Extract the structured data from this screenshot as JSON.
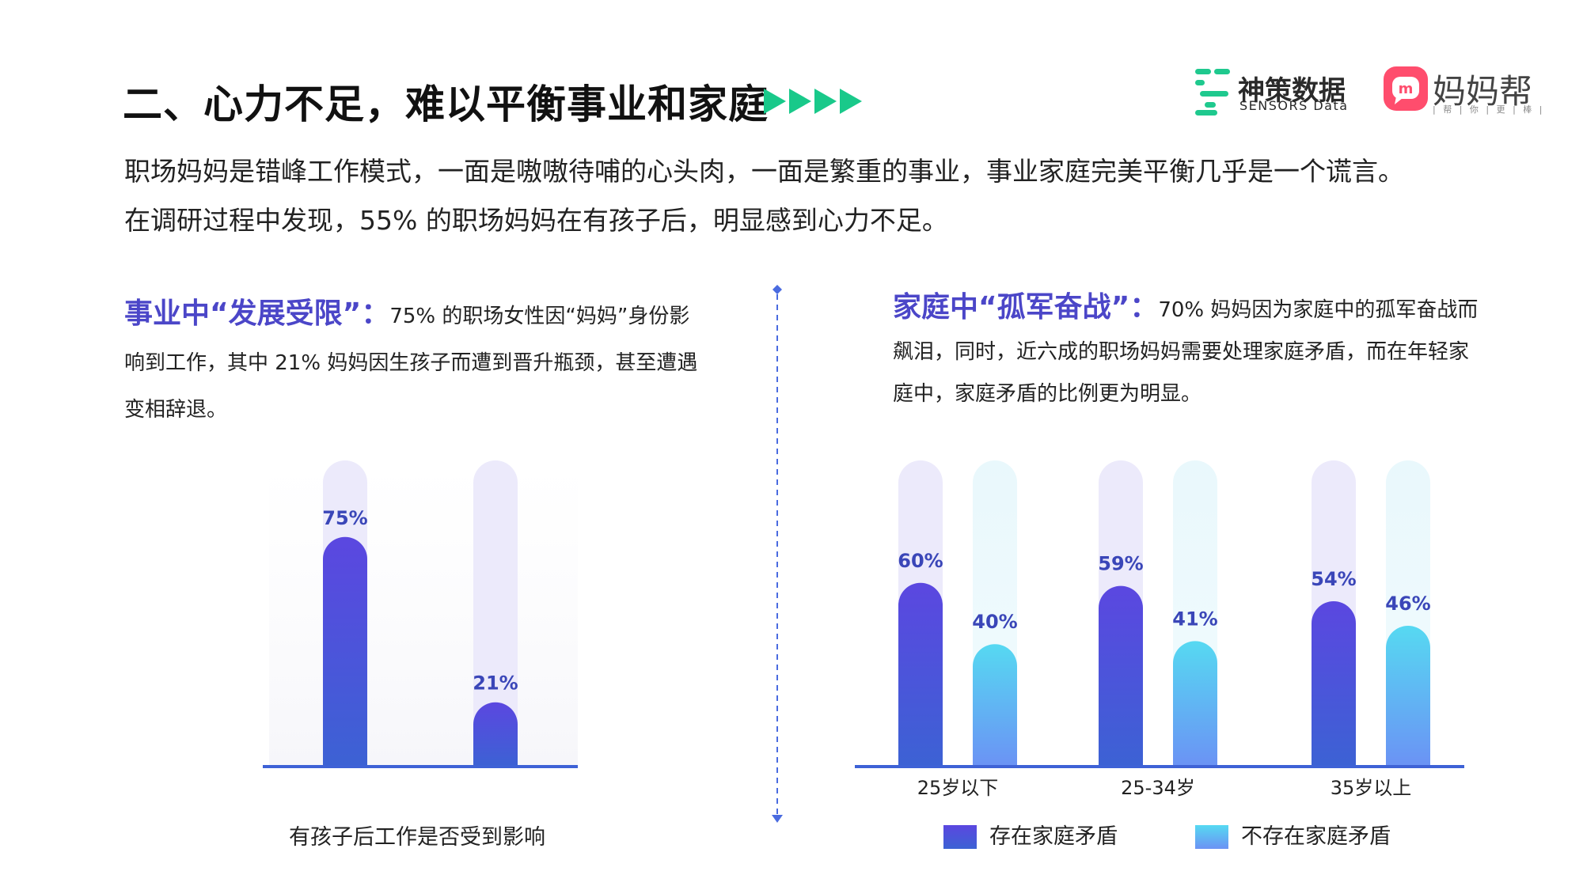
{
  "header": {
    "title": "二、心力不足，难以平衡事业和家庭",
    "arrow_color": "#19c98a",
    "logos": {
      "sensors": {
        "name_cn": "神策数据",
        "name_en": "SENSORS Data",
        "color": "#1fc98e"
      },
      "mmb": {
        "name_cn": "妈妈帮",
        "slogan": "| 帮 | 你 | 更 | 棒 |",
        "color": "#ff4d6d"
      }
    }
  },
  "intro": {
    "line1": "职场妈妈是错峰工作模式，一面是嗷嗷待哺的心头肉，一面是繁重的事业，事业家庭完美平衡几乎是一个谎言。",
    "line2": "在调研过程中发现，55% 的职场妈妈在有孩子后，明显感到心力不足。"
  },
  "left_section": {
    "heading": "事业中“发展受限”：",
    "body": "75% 的职场女性因“妈妈”身份影响到工作，其中 21% 妈妈因生孩子而遭到晋升瓶颈，甚至遭遇变相辞退。"
  },
  "right_section": {
    "heading": "家庭中“孤军奋战”：",
    "body": "70% 妈妈因为家庭中的孤军奋战而飙泪，同时，近六成的职场妈妈需要处理家庭矛盾，而在年轻家庭中，家庭矛盾的比例更为明显。"
  },
  "colors": {
    "primary": "#5a48df",
    "primary_dark": "#3e5ed6",
    "cyan": "#55d6f0",
    "cyan_dark": "#6a95f5",
    "track_purple": "#eceafb",
    "track_cyan": "#e8f7fc",
    "axis": "#3e62d6",
    "label": "#3a46b8",
    "divider": "#4a6be0"
  },
  "chart_data": [
    {
      "type": "bar",
      "xlabel": "有孩子后工作是否受到影响",
      "ylim": [
        0,
        100
      ],
      "categories": [
        "",
        ""
      ],
      "values": [
        75,
        21
      ],
      "value_labels": [
        "75%",
        "21%"
      ]
    },
    {
      "type": "bar",
      "ylim": [
        0,
        100
      ],
      "categories": [
        "25岁以下",
        "25-34岁",
        "35岁以上"
      ],
      "series": [
        {
          "name": "存在家庭矛盾",
          "values": [
            60,
            59,
            54
          ],
          "value_labels": [
            "60%",
            "59%",
            "54%"
          ]
        },
        {
          "name": "不存在家庭矛盾",
          "values": [
            40,
            41,
            46
          ],
          "value_labels": [
            "40%",
            "41%",
            "46%"
          ]
        }
      ],
      "legend": "bottom"
    }
  ]
}
